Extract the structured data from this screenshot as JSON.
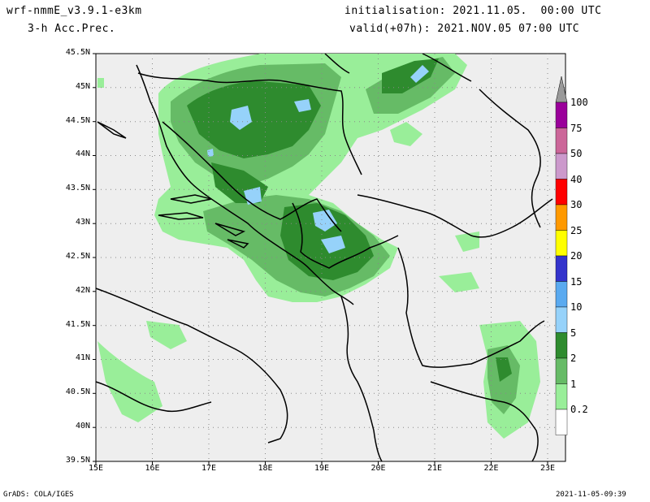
{
  "header": {
    "model": "wrf-nmmE_v3.9.1-e3km",
    "field": "3-h Acc.Prec.",
    "init": "initialisation: 2021.11.05.  00:00 UTC",
    "valid": "valid(+07h): 2021.NOV.05 07:00 UTC"
  },
  "footer": {
    "left": "GrADS: COLA/IGES",
    "right": "2021-11-05-09:39"
  },
  "axes": {
    "lat_labels": [
      "45.5N",
      "45N",
      "44.5N",
      "44N",
      "43.5N",
      "43N",
      "42.5N",
      "42N",
      "41.5N",
      "41N",
      "40.5N",
      "40N",
      "39.5N"
    ],
    "lon_labels": [
      "15E",
      "16E",
      "17E",
      "18E",
      "19E",
      "20E",
      "21E",
      "22E",
      "23E"
    ]
  },
  "colorbar": {
    "labels": [
      "100",
      "75",
      "50",
      "40",
      "30",
      "25",
      "20",
      "15",
      "10",
      "5",
      "2",
      "1",
      "0.2"
    ],
    "colors": [
      "#9a009a",
      "#cc6699",
      "#cc99cc",
      "#ff0000",
      "#ff9900",
      "#ffff00",
      "#3333cc",
      "#5aaaf0",
      "#96d2fa",
      "#2e8b2e",
      "#66bb66",
      "#99ee99",
      "#ffffff"
    ],
    "top_arrow_color": "#999999"
  },
  "map_colors": {
    "background": "#eeeeee",
    "land_border": "#000000",
    "precip_light": "#99ee99",
    "precip_mid": "#66bb66",
    "precip_dark": "#2e8b2e",
    "precip_blue": "#96d2fa"
  }
}
